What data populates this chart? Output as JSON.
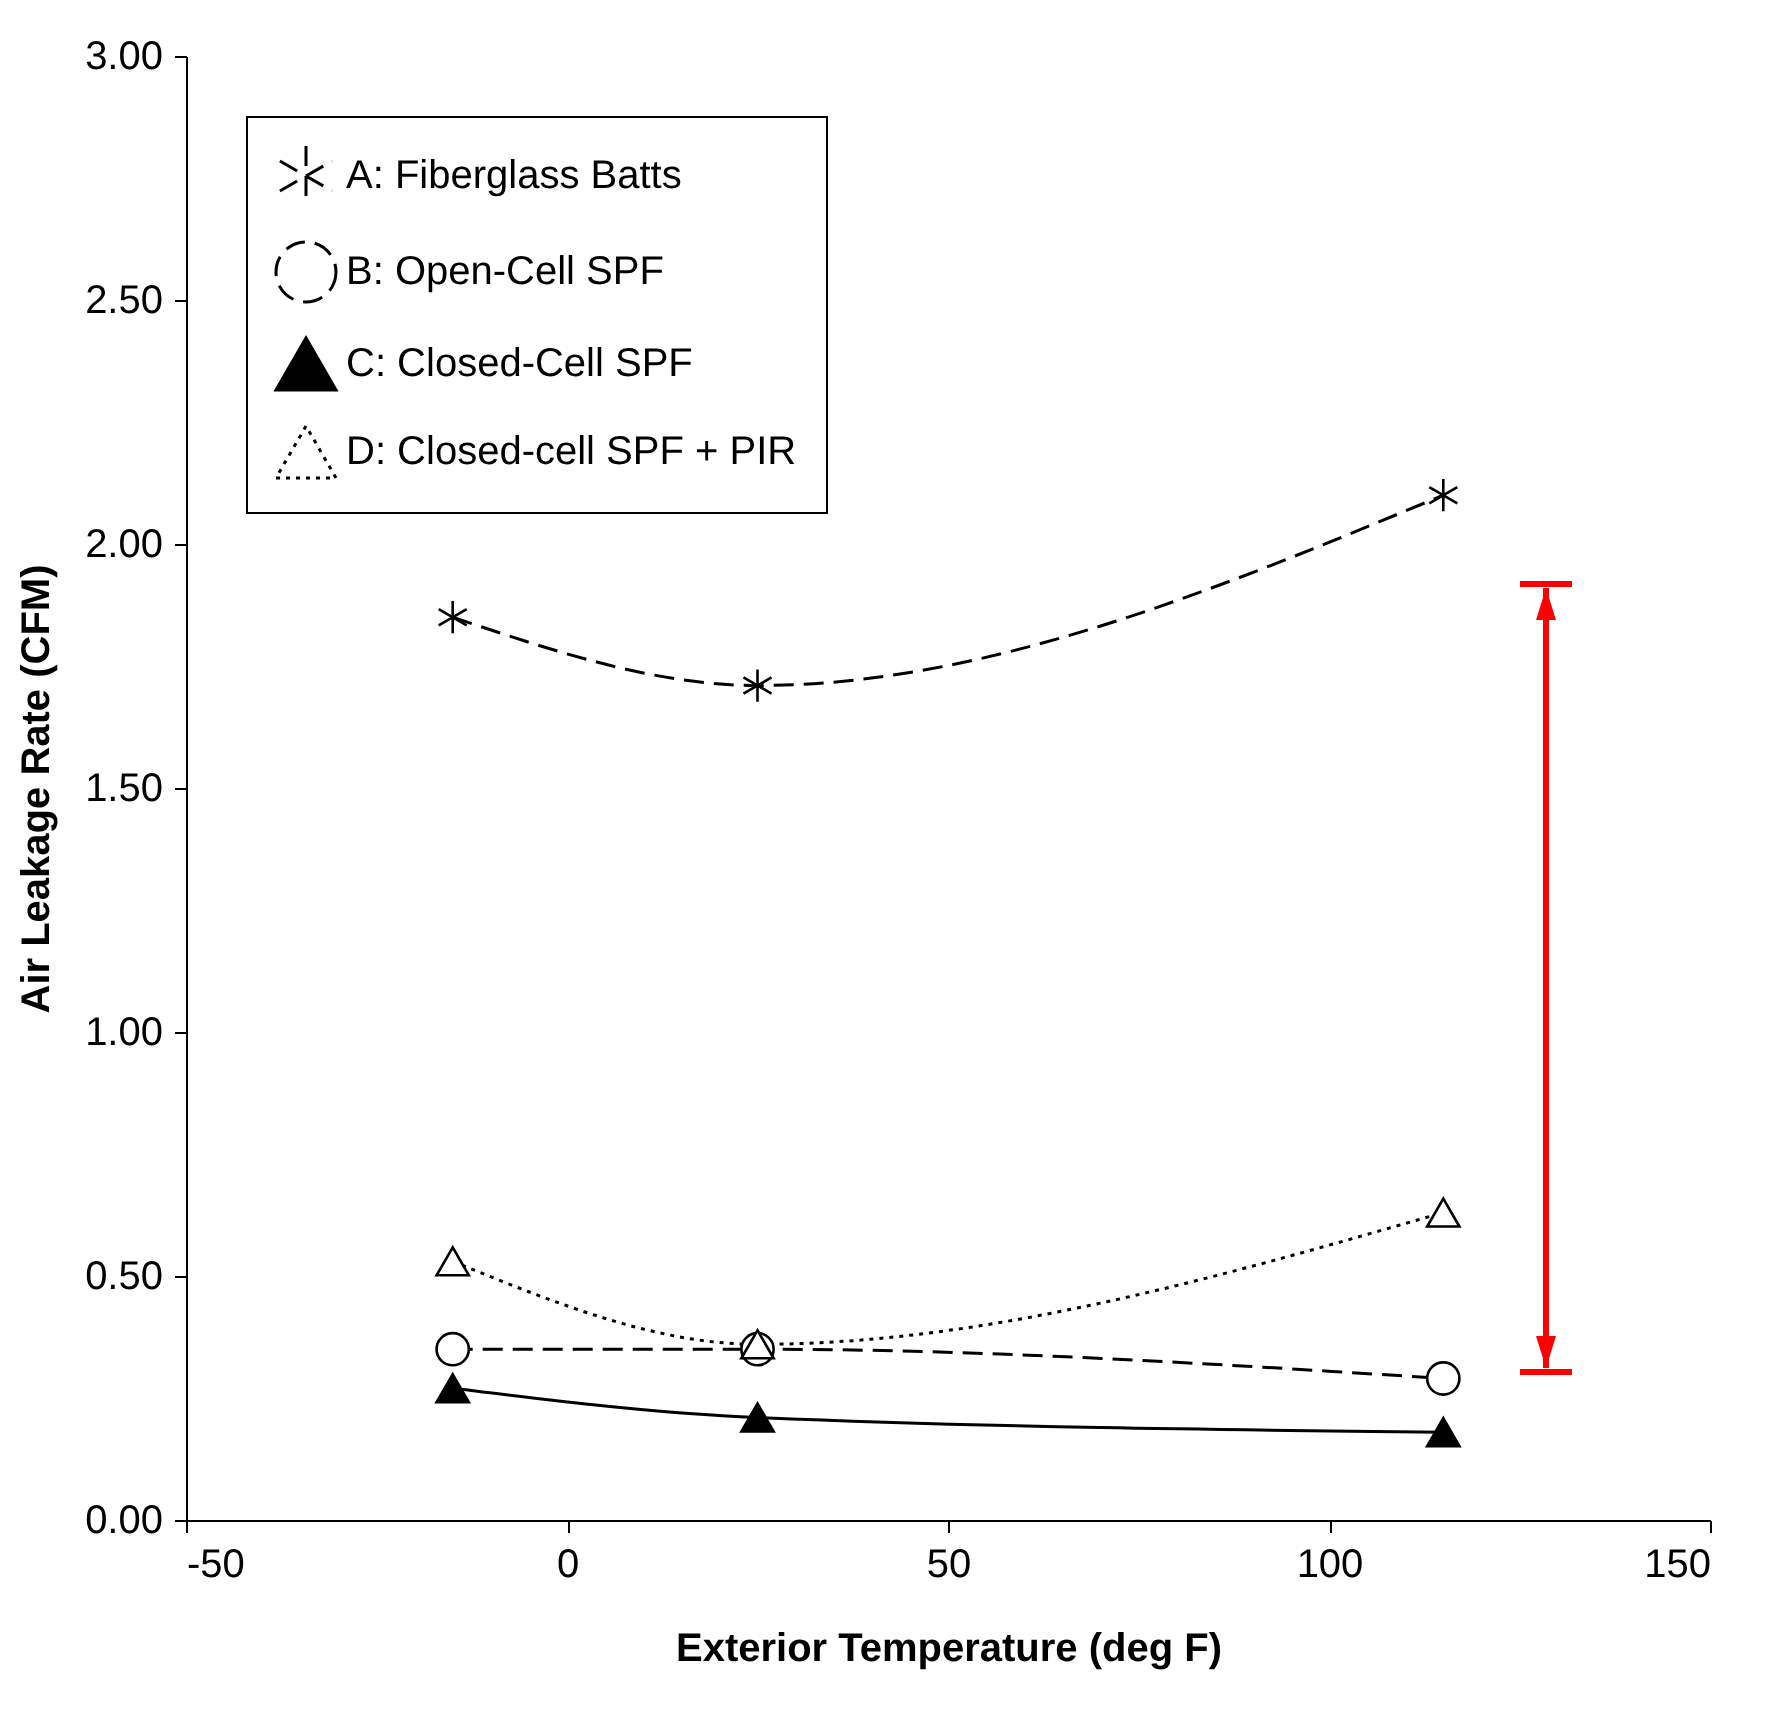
{
  "chart_data": {
    "type": "line",
    "xlabel": "Exterior Temperature (deg F)",
    "ylabel": "Air Leakage Rate (CFM)",
    "x": [
      -15,
      25,
      115
    ],
    "series": [
      {
        "name": "A: Fiberglass Batts",
        "color": "#000000",
        "values": [
          1.85,
          1.71,
          2.1
        ],
        "marker": "cross",
        "line_style": "dashed"
      },
      {
        "name": "B: Open-Cell SPF",
        "color": "#000000",
        "values": [
          0.35,
          0.35,
          0.29
        ],
        "marker": "circle",
        "line_style": "dashed"
      },
      {
        "name": "C: Closed-Cell SPF",
        "color": "#000000",
        "values": [
          0.27,
          0.21,
          0.18
        ],
        "marker": "triangle",
        "line_style": "solid"
      },
      {
        "name": "D: Closed-cell SPF + PIR",
        "color": "#000000",
        "values": [
          0.53,
          0.36,
          0.63
        ],
        "marker": "triangle",
        "line_style": "dotted"
      }
    ],
    "xlim": [
      -50,
      150
    ],
    "xticks": [
      -50,
      0,
      50,
      100,
      150
    ],
    "ylim": [
      0,
      3
    ],
    "yticks": [
      {
        "value": 0,
        "label": "0.00"
      },
      {
        "value": 0.5,
        "label": "0.50"
      },
      {
        "value": 1,
        "label": "1.00"
      },
      {
        "value": 1.5,
        "label": "1.50"
      },
      {
        "value": 2,
        "label": "2.00"
      },
      {
        "value": 2.5,
        "label": "2.50"
      },
      {
        "value": 3,
        "label": "3.00"
      }
    ],
    "grid": false,
    "legend": "top left"
  }
}
